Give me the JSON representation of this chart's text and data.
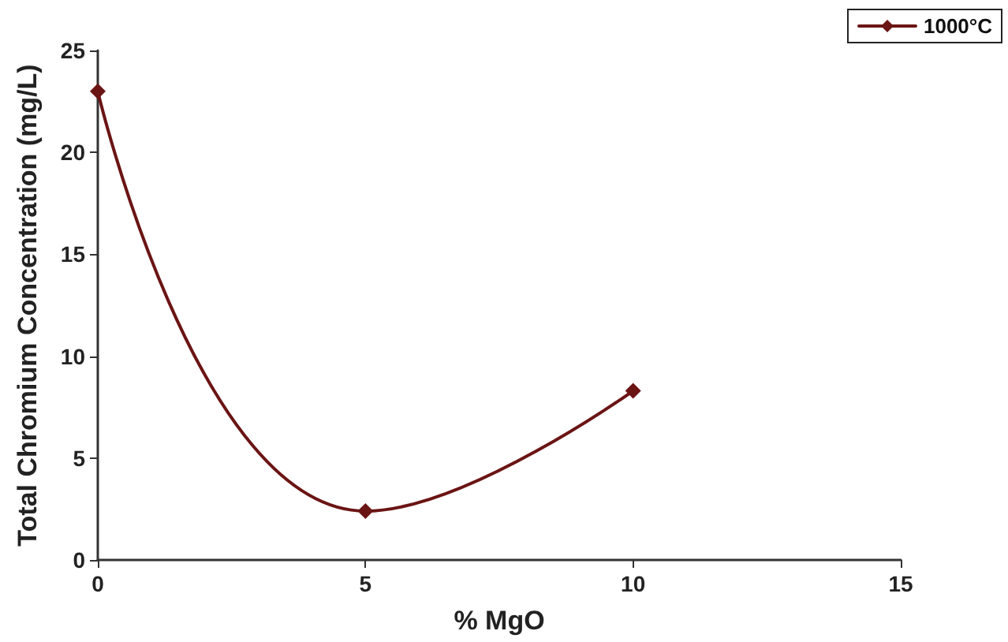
{
  "chart_data": {
    "type": "line",
    "xlabel": "% MgO",
    "ylabel": "Total Chromium Concentration (mg/L)",
    "x": [
      0,
      5,
      10
    ],
    "series": [
      {
        "name": "1000°C",
        "color": "#6b1414",
        "values": [
          23,
          2.4,
          8.3
        ]
      }
    ],
    "xlim": [
      0,
      15
    ],
    "xticks": [
      0,
      5,
      10,
      15
    ],
    "ylim": [
      0,
      25
    ],
    "yticks": [
      0,
      5,
      10,
      15,
      20,
      25
    ],
    "grid": false,
    "legend": "top right",
    "marker": "diamond",
    "line_style": "solid"
  }
}
